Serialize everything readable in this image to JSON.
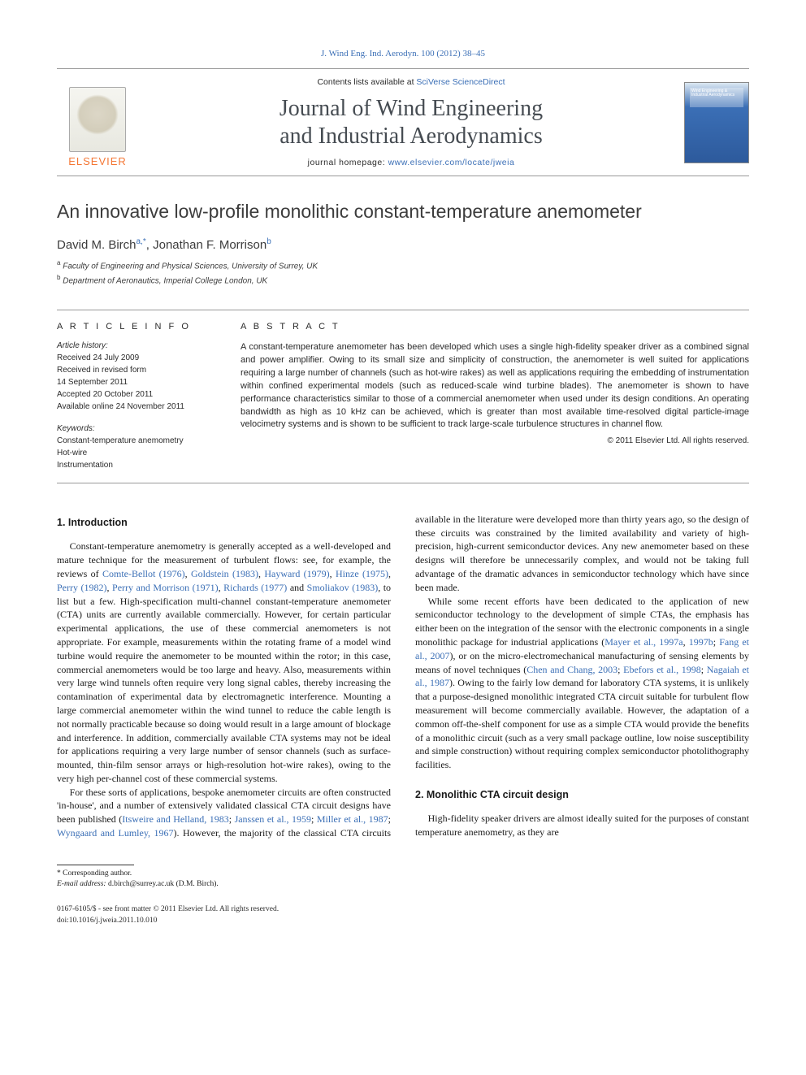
{
  "journal_ref": "J. Wind Eng. Ind. Aerodyn. 100 (2012) 38–45",
  "masthead": {
    "publisher": "ELSEVIER",
    "contents_prefix": "Contents lists available at ",
    "contents_link": "SciVerse ScienceDirect",
    "journal_title_l1": "Journal of Wind Engineering",
    "journal_title_l2": "and Industrial Aerodynamics",
    "homepage_prefix": "journal homepage: ",
    "homepage_url": "www.elsevier.com/locate/jweia",
    "cover_caption": "Wind Engineering & Industrial Aerodynamics"
  },
  "article": {
    "title": "An innovative low-profile monolithic constant-temperature anemometer",
    "authors_html": "David M. Birch",
    "author1_sup": "a,*",
    "authors_sep": ", ",
    "author2": "Jonathan F. Morrison",
    "author2_sup": "b",
    "affiliations": [
      {
        "sup": "a",
        "text": " Faculty of Engineering and Physical Sciences, University of Surrey, UK"
      },
      {
        "sup": "b",
        "text": " Department of Aeronautics, Imperial College London, UK"
      }
    ]
  },
  "article_info": {
    "heading": "A R T I C L E  I N F O",
    "history_label": "Article history:",
    "history": [
      "Received 24 July 2009",
      "Received in revised form",
      "14 September 2011",
      "Accepted 20 October 2011",
      "Available online 24 November 2011"
    ],
    "keywords_label": "Keywords:",
    "keywords": [
      "Constant-temperature anemometry",
      "Hot-wire",
      "Instrumentation"
    ]
  },
  "abstract": {
    "heading": "A B S T R A C T",
    "text": "A constant-temperature anemometer has been developed which uses a single high-fidelity speaker driver as a combined signal and power amplifier. Owing to its small size and simplicity of construction, the anemometer is well suited for applications requiring a large number of channels (such as hot-wire rakes) as well as applications requiring the embedding of instrumentation within confined experimental models (such as reduced-scale wind turbine blades). The anemometer is shown to have performance characteristics similar to those of a commercial anemometer when used under its design conditions. An operating bandwidth as high as 10 kHz can be achieved, which is greater than most available time-resolved digital particle-image velocimetry systems and is shown to be sufficient to track large-scale turbulence structures in channel flow.",
    "copyright": "© 2011 Elsevier Ltd. All rights reserved."
  },
  "sections": {
    "s1_heading": "1.  Introduction",
    "s1_p1a": "Constant-temperature anemometry is generally accepted as a well-developed and mature technique for the measurement of turbulent flows: see, for example, the reviews of ",
    "s1_r1": "Comte-Bellot (1976)",
    "s1_r2": "Goldstein (1983)",
    "s1_r3": "Hayward (1979)",
    "s1_r4": "Hinze (1975)",
    "s1_r5": "Perry (1982)",
    "s1_r6": "Perry and Morrison (1971)",
    "s1_r7": "Richards (1977)",
    "s1_r8": "Smoliakov (1983)",
    "s1_p1b": ", to list but a few. High-specification multi-channel constant-temperature anemometer (CTA) units are currently available commercially. However, for certain particular experimental applications, the use of these commercial anemometers is not appropriate. For example, measurements within the rotating frame of a model wind turbine would require the anemometer to be mounted within the rotor; in this case, commercial anemometers would be too large and heavy. Also, measurements within very large wind tunnels often require very long signal cables, thereby increasing the contamination of experimental data by electromagnetic interference. Mounting a large commercial anemometer within the wind tunnel to reduce the cable length is not normally practicable because so doing would result in a large amount of blockage and interference. In addition, commercially available CTA systems may not be ideal for applications requiring a very large number of sensor channels (such as surface-mounted, thin-film sensor arrays or high-resolution hot-wire rakes), owing to the very high per-channel cost of these commercial systems.",
    "s1_p2a": "For these sorts of applications, bespoke anemometer circuits are often constructed 'in-house', and a number of extensively validated classical CTA circuit designs have been published (",
    "s1_r9": "Itsweire and Helland, 1983",
    "s1_r10": "Janssen et al., 1959",
    "s1_r11": "Miller et al., 1987",
    "s1_r12": "Wyngaard and Lumley, 1967",
    "s1_p2b": "). However, the majority of the classical CTA circuits available in the literature were developed more than thirty years ago, so the design of these circuits was constrained by the limited availability and variety of high-precision, high-current semiconductor devices. Any new anemometer based on these designs will therefore be unnecessarily complex, and would not be taking full advantage of the dramatic advances in semiconductor technology which have since been made.",
    "s1_p3a": "While some recent efforts have been dedicated to the application of new semiconductor technology to the development of simple CTAs, the emphasis has either been on the integration of the sensor with the electronic components in a single monolithic package for industrial applications (",
    "s1_r13": "Mayer et al., 1997a",
    "s1_r14": "1997b",
    "s1_r15": "Fang et al., 2007",
    "s1_p3b": "), or on the micro-electromechanical manufacturing of sensing elements by means of novel techniques (",
    "s1_r16": "Chen and Chang, 2003",
    "s1_r17": "Ebefors et al., 1998",
    "s1_r18": "Nagaiah et al., 1987",
    "s1_p3c": "). Owing to the fairly low demand for laboratory CTA systems, it is unlikely that a purpose-designed monolithic integrated CTA circuit suitable for turbulent flow measurement will become commercially available. However, the adaptation of a common off-the-shelf component for use as a simple CTA would provide the benefits of a monolithic circuit (such as a very small package outline, low noise susceptibility and simple construction) without requiring complex semiconductor photolithography facilities.",
    "s2_heading": "2.  Monolithic CTA circuit design",
    "s2_p1": "High-fidelity speaker drivers are almost ideally suited for the purposes of constant temperature anemometry, as they are"
  },
  "footnotes": {
    "corr_marker": "* ",
    "corr_text": "Corresponding author.",
    "email_label": "E-mail address: ",
    "email": "d.birch@surrey.ac.uk",
    "email_suffix": " (D.M. Birch)."
  },
  "bottom": {
    "issn_line": "0167-6105/$ - see front matter © 2011 Elsevier Ltd. All rights reserved.",
    "doi_line": "doi:10.1016/j.jweia.2011.10.010"
  },
  "style": {
    "link_color": "#3b6fb6",
    "publisher_color": "#f47735",
    "text_color": "#1a1a1a",
    "muted_text": "#2a2a2a",
    "border_color": "#999999",
    "cover_gradient_top": "#dce8f2",
    "cover_gradient_bottom": "#2d5a9c",
    "body_font_size_pt": 9,
    "title_font_size_pt": 17,
    "journal_title_font_size_pt": 21
  }
}
